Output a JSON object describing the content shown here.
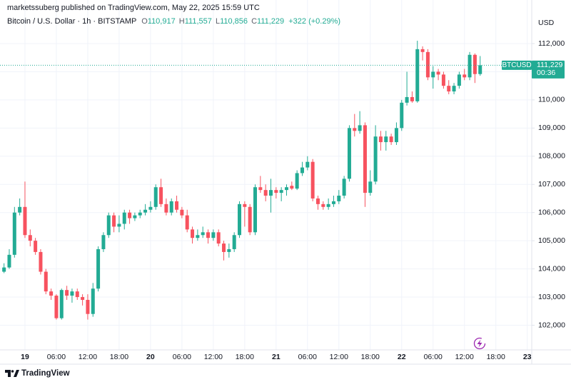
{
  "header": {
    "published": "marketssuberg published on TradingView.com, May 22, 2025 15:59 UTC",
    "symbol": "Bitcoin / U.S. Dollar · 1h · BITSTAMP",
    "ohlc": [
      {
        "key": "O",
        "value": "110,917"
      },
      {
        "key": "H",
        "value": "111,557"
      },
      {
        "key": "L",
        "value": "110,856"
      },
      {
        "key": "C",
        "value": "111,229"
      }
    ],
    "change": "+322 (+0.29%)"
  },
  "currency": "USD",
  "logo": "TradingView",
  "chart_data": {
    "type": "candlestick",
    "up_color": "#22ab94",
    "down_color": "#f7525f",
    "grid": true,
    "last_price": {
      "symbol": "BTCUSD",
      "label": "111,229",
      "timer": "00:36"
    },
    "x": [
      -4,
      -3,
      -2,
      -1,
      0,
      1,
      2,
      3,
      4,
      5,
      6,
      7,
      8,
      9,
      10,
      11,
      12,
      13,
      14,
      15,
      16,
      17,
      18,
      19,
      20,
      21,
      22,
      23,
      24,
      25,
      26,
      27,
      28,
      29,
      30,
      31,
      32,
      33,
      34,
      35,
      36,
      37,
      38,
      39,
      40,
      41,
      42,
      43,
      44,
      45,
      46,
      47,
      48,
      49,
      50,
      51,
      52,
      53,
      54,
      55,
      56,
      57,
      58,
      59,
      60,
      61,
      62,
      63,
      64,
      65,
      66,
      67,
      68,
      69,
      70,
      71,
      72,
      73,
      74,
      75,
      76,
      77,
      78,
      79,
      80,
      81,
      82,
      83,
      84,
      85,
      86,
      87
    ],
    "open": [
      103900,
      104050,
      104500,
      106000,
      106200,
      105200,
      105000,
      104600,
      103900,
      103200,
      103050,
      102250,
      103250,
      103050,
      103200,
      103000,
      102900,
      102400,
      103300,
      104700,
      105200,
      105900,
      105500,
      105600,
      106000,
      105800,
      105900,
      106000,
      106100,
      106200,
      106900,
      106300,
      106000,
      106400,
      106100,
      105900,
      105400,
      105100,
      105200,
      105300,
      105100,
      105300,
      104900,
      104600,
      104700,
      105200,
      106300,
      106200,
      105300,
      106900,
      106800,
      106600,
      106800,
      106700,
      106800,
      106950,
      106850,
      107400,
      107600,
      107800,
      106500,
      106300,
      106200,
      106300,
      106400,
      106600,
      107200,
      109000,
      108900,
      109100,
      106700,
      107100,
      108700,
      108500,
      108700,
      108500,
      109000,
      109900,
      110100,
      109950,
      111800,
      111700,
      110800,
      111000,
      110900,
      110500,
      110300,
      110500,
      110900,
      110800,
      111600,
      110917
    ],
    "high": [
      104200,
      104700,
      106200,
      106500,
      107100,
      105400,
      105100,
      104700,
      104000,
      103300,
      103100,
      103300,
      103400,
      103300,
      103300,
      103100,
      103100,
      103500,
      104800,
      105300,
      106000,
      106000,
      105900,
      106100,
      106100,
      106000,
      106100,
      106300,
      106400,
      107000,
      107200,
      106500,
      106500,
      106600,
      106200,
      106100,
      105500,
      105400,
      105500,
      105400,
      105400,
      105400,
      105000,
      104900,
      105300,
      106400,
      106400,
      106300,
      107000,
      107300,
      107000,
      107200,
      106900,
      106900,
      107000,
      107100,
      107500,
      107800,
      108000,
      107900,
      106600,
      106400,
      106500,
      106600,
      106800,
      107300,
      109100,
      109500,
      109600,
      109200,
      107500,
      109100,
      108900,
      108900,
      108800,
      109200,
      110000,
      111000,
      110300,
      112100,
      111900,
      111800,
      111200,
      111100,
      111000,
      110700,
      110600,
      111000,
      111100,
      111700,
      111650,
      111557
    ],
    "low": [
      103850,
      104000,
      104400,
      105900,
      105100,
      104800,
      104500,
      103800,
      103100,
      102900,
      102200,
      102200,
      102900,
      102800,
      102900,
      102700,
      102200,
      102300,
      103200,
      104600,
      105100,
      105300,
      105300,
      105400,
      105600,
      105700,
      105800,
      105900,
      106000,
      106100,
      106200,
      105900,
      105900,
      106000,
      105800,
      105300,
      104900,
      105000,
      105100,
      104900,
      105000,
      104800,
      104300,
      104400,
      104600,
      105100,
      105500,
      105200,
      105200,
      106700,
      106400,
      106000,
      106500,
      106400,
      106600,
      106800,
      106800,
      107300,
      107500,
      106400,
      106100,
      106100,
      106100,
      106200,
      106300,
      106500,
      107100,
      108700,
      108800,
      106200,
      106600,
      107000,
      108200,
      108200,
      108400,
      108400,
      108900,
      109800,
      109900,
      109900,
      111400,
      110700,
      110400,
      110700,
      110400,
      110200,
      110200,
      110400,
      110700,
      110700,
      110600,
      110856
    ],
    "close": [
      104050,
      104500,
      106000,
      106200,
      105200,
      105000,
      104600,
      103900,
      103200,
      103050,
      102250,
      103250,
      103050,
      103200,
      103000,
      102900,
      102400,
      103300,
      104700,
      105200,
      105900,
      105500,
      105600,
      106000,
      105800,
      105900,
      106000,
      106100,
      106200,
      106900,
      106300,
      106000,
      106400,
      106100,
      105900,
      105400,
      105100,
      105200,
      105300,
      105100,
      105300,
      104900,
      104600,
      104700,
      105200,
      106300,
      106200,
      105300,
      106900,
      106800,
      106600,
      106800,
      106700,
      106800,
      106900,
      106850,
      107400,
      107600,
      107800,
      106500,
      106300,
      106200,
      106300,
      106400,
      106600,
      107200,
      109000,
      108900,
      109100,
      106700,
      107100,
      108700,
      108500,
      108700,
      108500,
      109000,
      109900,
      110100,
      109950,
      111800,
      111700,
      110800,
      111000,
      110900,
      110500,
      110300,
      110500,
      110900,
      110800,
      111600,
      110917,
      111229
    ],
    "xlim": [
      -4.77,
      96.86
    ],
    "ylim": [
      101125,
      113166
    ],
    "xticks": [
      {
        "value": 0,
        "label": "19"
      },
      {
        "value": 6,
        "label": "06:00"
      },
      {
        "value": 12,
        "label": "12:00"
      },
      {
        "value": 18,
        "label": "18:00"
      },
      {
        "value": 24,
        "label": "20"
      },
      {
        "value": 30,
        "label": "06:00"
      },
      {
        "value": 36,
        "label": "12:00"
      },
      {
        "value": 42,
        "label": "18:00"
      },
      {
        "value": 48,
        "label": "21"
      },
      {
        "value": 54,
        "label": "06:00"
      },
      {
        "value": 60,
        "label": "12:00"
      },
      {
        "value": 66,
        "label": "18:00"
      },
      {
        "value": 72,
        "label": "22"
      },
      {
        "value": 78,
        "label": "06:00"
      },
      {
        "value": 84,
        "label": "12:00"
      },
      {
        "value": 90,
        "label": "18:00"
      },
      {
        "value": 96,
        "label": "23"
      }
    ],
    "yticks": [
      {
        "value": 102000,
        "label": "102,000"
      },
      {
        "value": 103000,
        "label": "103,000"
      },
      {
        "value": 104000,
        "label": "104,000"
      },
      {
        "value": 105000,
        "label": "105,000"
      },
      {
        "value": 106000,
        "label": "106,000"
      },
      {
        "value": 107000,
        "label": "107,000"
      },
      {
        "value": 108000,
        "label": "108,000"
      },
      {
        "value": 109000,
        "label": "109,000"
      },
      {
        "value": 110000,
        "label": "110,000"
      },
      {
        "value": 111000,
        "label": "111,000"
      },
      {
        "value": 112000,
        "label": "112,000"
      }
    ]
  }
}
